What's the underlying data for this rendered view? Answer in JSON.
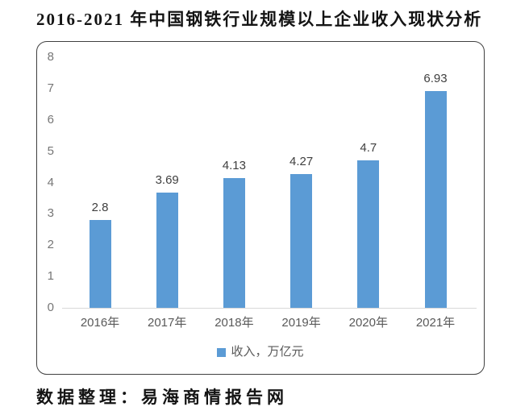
{
  "page": {
    "title": "2016-2021 年中国钢铁行业规模以上企业收入现状分析",
    "footer": "数据整理：易海商情报告网"
  },
  "colors": {
    "bar": "#5B9BD5",
    "axis_line": "#D9D9D9",
    "y_tick_label": "#767676",
    "x_tick_label": "#595959",
    "data_label": "#3F3F3F",
    "chart_border": "#404040",
    "legend_text": "#595959"
  },
  "chart_data": {
    "type": "bar",
    "title": "2016-2021 年中国钢铁行业规模以上企业收入现状分析",
    "categories": [
      "2016年",
      "2017年",
      "2018年",
      "2019年",
      "2020年",
      "2021年"
    ],
    "values": [
      2.8,
      3.69,
      4.13,
      4.27,
      4.7,
      6.93
    ],
    "data_labels": [
      "2.8",
      "3.69",
      "4.13",
      "4.27",
      "4.7",
      "6.93"
    ],
    "xlabel": "",
    "ylabel": "",
    "ylim": [
      0,
      8
    ],
    "yticks": [
      0,
      1,
      2,
      3,
      4,
      5,
      6,
      7,
      8
    ],
    "grid": false,
    "legend": {
      "label": "收入，万亿元",
      "position": "bottom"
    }
  }
}
